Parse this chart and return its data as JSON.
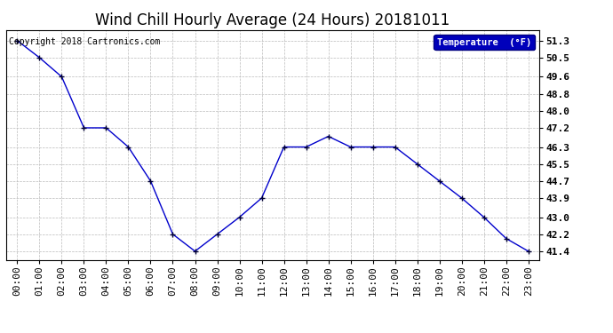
{
  "title": "Wind Chill Hourly Average (24 Hours) 20181011",
  "copyright": "Copyright 2018 Cartronics.com",
  "legend_label": "Temperature  (°F)",
  "x_labels": [
    "00:00",
    "01:00",
    "02:00",
    "03:00",
    "04:00",
    "05:00",
    "06:00",
    "07:00",
    "08:00",
    "09:00",
    "10:00",
    "11:00",
    "12:00",
    "13:00",
    "14:00",
    "15:00",
    "16:00",
    "17:00",
    "18:00",
    "19:00",
    "20:00",
    "21:00",
    "22:00",
    "23:00"
  ],
  "y_values": [
    51.3,
    50.5,
    49.6,
    47.2,
    47.2,
    46.3,
    44.7,
    42.2,
    41.4,
    42.2,
    43.0,
    43.9,
    46.3,
    46.3,
    46.8,
    46.3,
    46.3,
    46.3,
    45.5,
    44.7,
    43.9,
    43.0,
    42.0,
    41.4
  ],
  "y_ticks": [
    41.4,
    42.2,
    43.0,
    43.9,
    44.7,
    45.5,
    46.3,
    47.2,
    48.0,
    48.8,
    49.6,
    50.5,
    51.3
  ],
  "y_tick_labels": [
    "41.4",
    "42.2",
    "43.0",
    "43.9",
    "44.7",
    "45.5",
    "46.3",
    "47.2",
    "48.0",
    "48.8",
    "49.6",
    "50.5",
    "51.3"
  ],
  "ylim": [
    41.0,
    51.8
  ],
  "line_color": "#0000cc",
  "marker_color": "#000033",
  "bg_color": "#ffffff",
  "grid_color": "#bbbbbb",
  "title_fontsize": 12,
  "tick_fontsize": 8,
  "copyright_fontsize": 7,
  "legend_bg": "#0000bb",
  "legend_text_color": "#ffffff"
}
